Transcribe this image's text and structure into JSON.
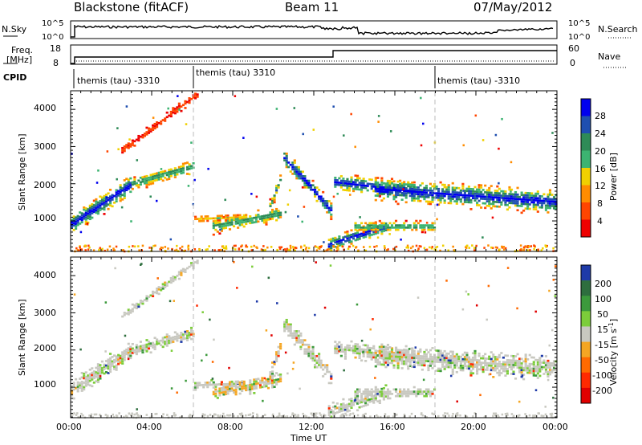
{
  "header": {
    "title": "Blackstone (fitACF)",
    "beam": "Beam 11",
    "date": "07/May/2012"
  },
  "top_panels": {
    "nsky_label": "N.Sky",
    "nsky_ticks": [
      "10^5",
      "10^0"
    ],
    "nsearch_label": "N.Search",
    "nsearch_ticks": [
      "10^5",
      "10^0"
    ],
    "freq_label_1": "Freq.",
    "freq_label_2": "[MHz]",
    "freq_ticks": [
      "18",
      "8"
    ],
    "nave_label": "Nave",
    "nave_ticks": [
      "60",
      "0"
    ],
    "cpid_label": "CPID",
    "cpid_segments": [
      {
        "text": "themis (tau) -3310",
        "start_hour": 0
      },
      {
        "text": "themis (tau) 3310",
        "start_hour": 6
      },
      {
        "text": "themis (tau) -3310",
        "start_hour": 18
      }
    ]
  },
  "chart_data": [
    {
      "type": "heatmap",
      "name": "power-panel",
      "ylabel": "Slant Range [km]",
      "yticks": [
        "4000",
        "3000",
        "2000",
        "1000"
      ],
      "ylim": [
        180,
        4500
      ],
      "xlim": [
        0,
        24
      ],
      "colorbar_label": "Power [dB]",
      "colorbar_ticks": [
        "28",
        "24",
        "20",
        "16",
        "12",
        "8",
        "4"
      ],
      "colors": [
        "#0000ee",
        "#1f4fb0",
        "#2e8b57",
        "#3cb371",
        "#f0d000",
        "#ff8c00",
        "#ff4500",
        "#ee0000"
      ]
    },
    {
      "type": "heatmap",
      "name": "velocity-panel",
      "ylabel": "Slant Range [km]",
      "yticks": [
        "4000",
        "3000",
        "2000",
        "1000"
      ],
      "ylim": [
        180,
        4500
      ],
      "xlim": [
        0,
        24
      ],
      "xlabel": "Time UT",
      "xticks": [
        "00:00",
        "04:00",
        "08:00",
        "12:00",
        "16:00",
        "20:00",
        "00:00"
      ],
      "colorbar_label": "Velocity [m s",
      "colorbar_label_sup": "-1",
      "colorbar_label_end": "]",
      "colorbar_ticks": [
        "200",
        "100",
        "50",
        "15",
        "-15",
        "-50",
        "-100",
        "-200"
      ],
      "colors": [
        "#1e3aa8",
        "#2e6e3e",
        "#3c9a3c",
        "#7ccd3a",
        "#c8c8c0",
        "#f5a623",
        "#ff6a00",
        "#ff2a00",
        "#e00000"
      ]
    }
  ]
}
